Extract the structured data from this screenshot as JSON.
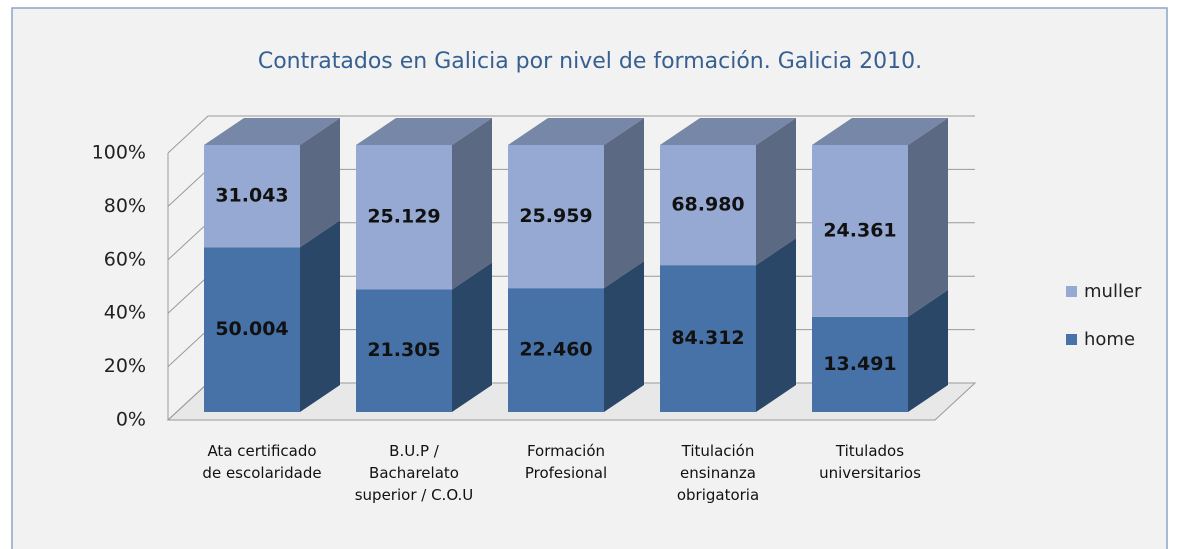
{
  "chart_data": {
    "type": "bar",
    "stacking": "percent",
    "three_d": true,
    "title": "Contratados en Galicia por nivel de formación. Galicia 2010.",
    "categories": [
      "Ata certificado\nde escolaridade",
      "B.U.P /\nBacharelato\nsuperior / C.O.U",
      "Formación\nProfesional",
      "Titulación\nensinanza\nobrigatoria",
      "Titulados\nuniversitarios"
    ],
    "series": [
      {
        "name": "home",
        "color": "#4672a8",
        "values": [
          50004,
          21305,
          22460,
          84312,
          13491
        ],
        "value_labels": [
          "50.004",
          "21.305",
          "22.460",
          "84.312",
          "13.491"
        ]
      },
      {
        "name": "muller",
        "color": "#95a9d2",
        "values": [
          31043,
          25129,
          25959,
          68980,
          24361
        ],
        "value_labels": [
          "31.043",
          "25.129",
          "25.959",
          "68.980",
          "24.361"
        ]
      }
    ],
    "ylim": [
      0,
      100
    ],
    "yticks": [
      {
        "value": 0,
        "label": "0%"
      },
      {
        "value": 20,
        "label": "20%"
      },
      {
        "value": 40,
        "label": "40%"
      },
      {
        "value": 60,
        "label": "60%"
      },
      {
        "value": 80,
        "label": "80%"
      },
      {
        "value": 100,
        "label": "100%"
      }
    ],
    "grid": true,
    "legend": "right"
  }
}
